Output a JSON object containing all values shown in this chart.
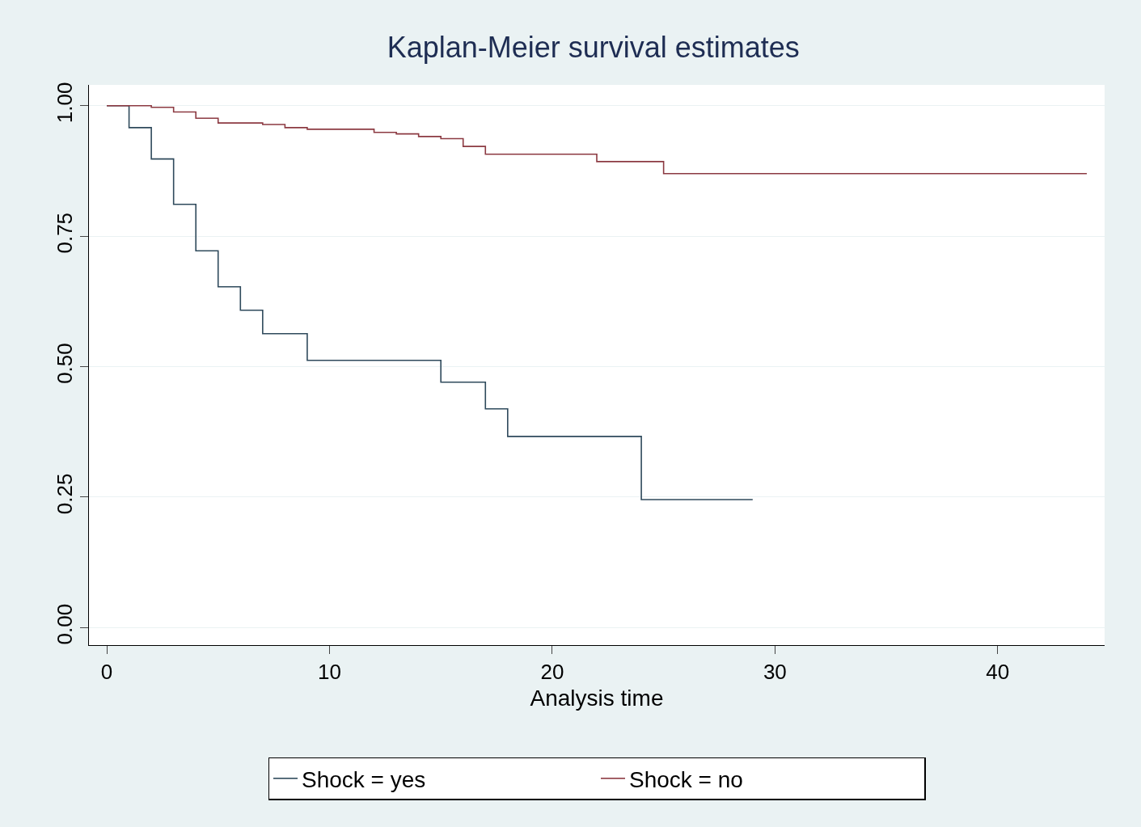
{
  "chart_data": {
    "type": "step",
    "title": "Kaplan-Meier survival estimates",
    "xlabel": "Analysis time",
    "series": [
      {
        "name": "Shock = yes",
        "color": "#2f4a5c",
        "x": [
          0,
          1,
          2,
          3,
          4,
          5,
          6,
          7,
          9,
          15,
          17,
          18,
          24,
          29
        ],
        "values": [
          1.0,
          0.958,
          0.898,
          0.811,
          0.722,
          0.653,
          0.608,
          0.563,
          0.512,
          0.47,
          0.419,
          0.366,
          0.245,
          0.245
        ]
      },
      {
        "name": "Shock = no",
        "color": "#8c3a42",
        "x": [
          0,
          2,
          3,
          4,
          5,
          7,
          8,
          9,
          12,
          13,
          14,
          15,
          16,
          17,
          22,
          25,
          44
        ],
        "values": [
          1.0,
          0.997,
          0.988,
          0.976,
          0.967,
          0.964,
          0.958,
          0.955,
          0.949,
          0.946,
          0.941,
          0.937,
          0.922,
          0.907,
          0.893,
          0.87,
          0.87
        ]
      }
    ],
    "xlim": [
      -0.8,
      44.8
    ],
    "xticks": [
      0,
      10,
      20,
      30,
      40
    ],
    "ylim": [
      -0.034,
      1.04
    ],
    "yticks": [
      {
        "value": 0,
        "label": "0.00"
      },
      {
        "value": 0.25,
        "label": "0.25"
      },
      {
        "value": 0.5,
        "label": "0.50"
      },
      {
        "value": 0.75,
        "label": "0.75"
      },
      {
        "value": 1,
        "label": "1.00"
      }
    ],
    "grid": "y",
    "legend": "bottom",
    "marker": "none",
    "line_style": "solid"
  }
}
